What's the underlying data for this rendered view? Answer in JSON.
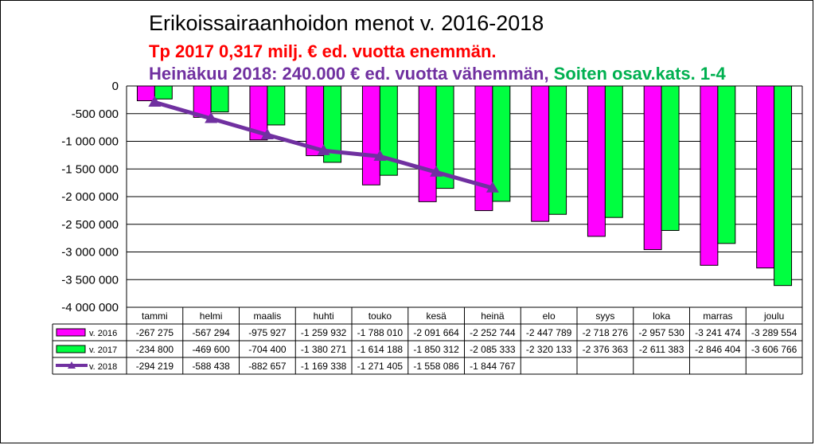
{
  "chart_data": {
    "type": "bar",
    "title": "Erikoissairaanhoidon menot v. 2016-2018",
    "subtitle_line1": "Tp 2017 0,317 milj. € ed. vuotta enemmän.",
    "subtitle_line2_part1": "Heinäkuu 2018: 240.000 € ed. vuotta vähemmän,",
    "subtitle_line2_part2": " Soiten osav.kats. 1-4",
    "categories": [
      "tammi",
      "helmi",
      "maalis",
      "huhti",
      "touko",
      "kesä",
      "heinä",
      "elo",
      "syys",
      "loka",
      "marras",
      "joulu"
    ],
    "ylim": [
      -4000000,
      0
    ],
    "y_ticks": [
      0,
      -500000,
      -1000000,
      -1500000,
      -2000000,
      -2500000,
      -3000000,
      -3500000,
      -4000000
    ],
    "y_tick_labels": [
      "0",
      "-500 000",
      "-1 000 000",
      "-1 500 000",
      "-2 000 000",
      "-2 500 000",
      "-3 000 000",
      "-3 500 000",
      "-4 000 000"
    ],
    "grid": true,
    "series": [
      {
        "name": "v. 2016",
        "kind": "bar",
        "color": "#ff00ff",
        "values": [
          -267275,
          -567294,
          -975927,
          -1259932,
          -1788010,
          -2091664,
          -2252744,
          -2447789,
          -2718276,
          -2957530,
          -3241474,
          -3289554
        ],
        "labels": [
          "-267 275",
          "-567 294",
          "-975 927",
          "-1 259 932",
          "-1 788 010",
          "-2 091 664",
          "-2 252 744",
          "-2 447 789",
          "-2 718 276",
          "-2 957 530",
          "-3 241 474",
          "-3 289 554"
        ]
      },
      {
        "name": "v. 2017",
        "kind": "bar",
        "color": "#00ff40",
        "values": [
          -234800,
          -469600,
          -704400,
          -1380271,
          -1614188,
          -1850312,
          -2085333,
          -2320133,
          -2376363,
          -2611383,
          -2846404,
          -3606766
        ],
        "labels": [
          "-234 800",
          "-469 600",
          "-704 400",
          "-1 380 271",
          "-1 614 188",
          "-1 850 312",
          "-2 085 333",
          "-2 320 133",
          "-2 376 363",
          "-2 611 383",
          "-2 846 404",
          "-3 606 766"
        ]
      },
      {
        "name": "v. 2018",
        "kind": "line",
        "color": "#7030a0",
        "values": [
          -294219,
          -588438,
          -882657,
          -1169338,
          -1271405,
          -1558086,
          -1844767,
          null,
          null,
          null,
          null,
          null
        ],
        "labels": [
          "-294 219",
          "-588 438",
          "-882 657",
          "-1 169 338",
          "-1 271 405",
          "-1 558 086",
          "-1 844 767",
          "",
          "",
          "",
          "",
          ""
        ]
      }
    ]
  },
  "colors": {
    "subtitle_red": "#ff0000",
    "subtitle_purple": "#7030a0",
    "subtitle_green": "#00b050"
  }
}
